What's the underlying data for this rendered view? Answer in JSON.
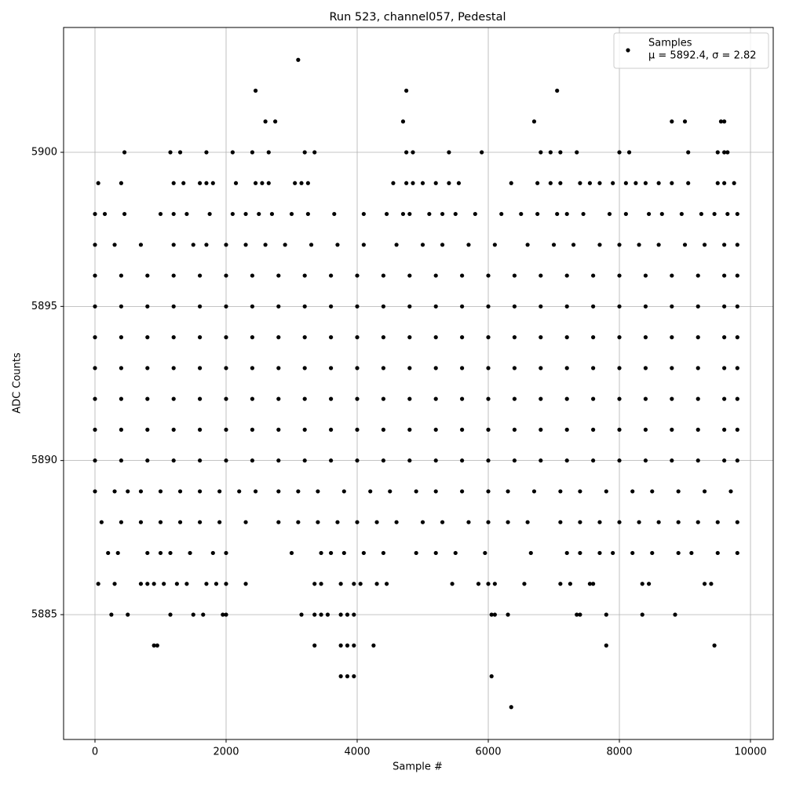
{
  "chart_data": {
    "type": "scatter",
    "title": "Run 523, channel057, Pedestal",
    "x_label": "Sample #",
    "y_label": "ADC Counts",
    "xlim": [
      -479,
      10347
    ],
    "ylim": [
      5880.95,
      5904.05
    ],
    "xticks": [
      0,
      2000,
      4000,
      6000,
      8000,
      10000
    ],
    "yticks": [
      5885,
      5890,
      5895,
      5900
    ],
    "grid": true,
    "legend": "upper right",
    "stats_label": "μ = 5892.4, σ = 2.82",
    "series": [
      {
        "name": "Samples",
        "color": "#000000",
        "x": [
          3100,
          2450,
          4750,
          7050,
          2600,
          2750,
          4700,
          6700,
          8800,
          9000,
          9550,
          9600,
          6350,
          6050,
          3750,
          3850,
          3950,
          900,
          950,
          3350,
          3750,
          3850,
          3950,
          4250,
          7800,
          9450,
          450,
          1150,
          1300,
          1700,
          2100,
          2400,
          2650,
          3200,
          3350,
          4750,
          4850,
          5400,
          5900,
          6800,
          6950,
          7100,
          7350,
          8000,
          8150,
          9050,
          9500,
          9600,
          9650,
          250,
          500,
          1150,
          1500,
          1650,
          1950,
          2000,
          3150,
          3350,
          3450,
          3550,
          3750,
          3850,
          3950,
          6050,
          6100,
          6300,
          7350,
          7400,
          7800,
          8350,
          8850,
          50,
          400,
          1200,
          1350,
          1600,
          1700,
          1800,
          2150,
          2450,
          2550,
          2650,
          3050,
          3150,
          3250,
          4550,
          4750,
          4850,
          5000,
          5200,
          5400,
          5550,
          6350,
          6750,
          6950,
          7100,
          7400,
          7550,
          7700,
          7900,
          8100,
          8250,
          8400,
          8600,
          8800,
          9050,
          9500,
          9600,
          9750,
          50,
          300,
          700,
          800,
          900,
          1050,
          1250,
          1400,
          1700,
          1850,
          2000,
          2300,
          3350,
          3450,
          3750,
          3950,
          4050,
          4300,
          4450,
          5450,
          5850,
          6000,
          6100,
          6550,
          7100,
          7250,
          7550,
          7600,
          8350,
          8450,
          9300,
          9400,
          0,
          400,
          800,
          1200,
          1600,
          2000,
          2400,
          2800,
          3200,
          3600,
          4000,
          4400,
          4800,
          5200,
          5600,
          6000,
          6400,
          6800,
          7200,
          7600,
          8000,
          8400,
          8800,
          9200,
          9600,
          9800,
          0,
          400,
          800,
          1200,
          1600,
          2000,
          2400,
          2800,
          3200,
          3600,
          4000,
          4400,
          4800,
          5200,
          5600,
          6000,
          6400,
          6800,
          7200,
          7600,
          8000,
          8400,
          8800,
          9200,
          9600,
          9800,
          0,
          400,
          800,
          1200,
          1600,
          2000,
          2400,
          2800,
          3200,
          3600,
          4000,
          4400,
          4800,
          5200,
          5600,
          6000,
          6400,
          6800,
          7200,
          7600,
          8000,
          8400,
          8800,
          9200,
          9600,
          9800,
          0,
          400,
          800,
          1200,
          1600,
          2000,
          2400,
          2800,
          3200,
          3600,
          4000,
          4400,
          4800,
          5200,
          5600,
          6000,
          6400,
          6800,
          7200,
          7600,
          8000,
          8400,
          8800,
          9200,
          9600,
          9800,
          0,
          400,
          800,
          1200,
          1600,
          2000,
          2400,
          2800,
          3200,
          3600,
          4000,
          4400,
          4800,
          5200,
          5600,
          6000,
          6400,
          6800,
          7200,
          7600,
          8000,
          8400,
          8800,
          9200,
          9600,
          9800,
          0,
          400,
          800,
          1200,
          1600,
          2000,
          2400,
          2800,
          3200,
          3600,
          4000,
          4400,
          4800,
          5200,
          5600,
          6000,
          6400,
          6800,
          7200,
          7600,
          8000,
          8400,
          8800,
          9200,
          9600,
          9800,
          0,
          400,
          800,
          1200,
          1600,
          2000,
          2400,
          2800,
          3200,
          3600,
          4000,
          4400,
          4800,
          5200,
          5600,
          6000,
          6400,
          6800,
          7200,
          7600,
          8000,
          8400,
          8800,
          9200,
          9600,
          9800,
          0,
          300,
          700,
          1200,
          1500,
          1700,
          2000,
          2300,
          2600,
          2900,
          3300,
          3700,
          4100,
          4600,
          5000,
          5300,
          5700,
          6100,
          6600,
          7000,
          7300,
          7700,
          8000,
          8300,
          8600,
          9000,
          9300,
          9600,
          9800,
          0,
          150,
          450,
          1000,
          1200,
          1400,
          1750,
          2100,
          2300,
          2500,
          2700,
          3000,
          3250,
          3650,
          4100,
          4450,
          4700,
          4800,
          5100,
          5300,
          5500,
          5800,
          6200,
          6500,
          6750,
          7050,
          7200,
          7450,
          7850,
          8100,
          8450,
          8650,
          8950,
          9250,
          9450,
          9650,
          9800,
          0,
          300,
          500,
          700,
          1000,
          1300,
          1600,
          1900,
          2200,
          2450,
          2800,
          3100,
          3400,
          3800,
          4200,
          4500,
          4900,
          5200,
          5600,
          6000,
          6300,
          6700,
          7100,
          7400,
          7800,
          8200,
          8500,
          8900,
          9300,
          9700,
          100,
          400,
          700,
          1000,
          1300,
          1600,
          1900,
          2300,
          2800,
          3100,
          3400,
          3700,
          4000,
          4300,
          4600,
          5000,
          5300,
          5700,
          6000,
          6300,
          6600,
          7100,
          7400,
          7700,
          8000,
          8300,
          8600,
          8900,
          9200,
          9500,
          9800,
          200,
          350,
          800,
          1000,
          1150,
          1450,
          1800,
          2000,
          3000,
          3450,
          3600,
          3800,
          4100,
          4400,
          4900,
          5200,
          5500,
          5950,
          6650,
          7200,
          7400,
          7700,
          7900,
          8200,
          8500,
          8900,
          9100,
          9500,
          9800
        ],
        "values": [
          5903,
          5902,
          5902,
          5902,
          5901,
          5901,
          5901,
          5901,
          5901,
          5901,
          5901,
          5901,
          5882,
          5883,
          5883,
          5883,
          5883,
          5884,
          5884,
          5884,
          5884,
          5884,
          5884,
          5884,
          5884,
          5884,
          5900,
          5900,
          5900,
          5900,
          5900,
          5900,
          5900,
          5900,
          5900,
          5900,
          5900,
          5900,
          5900,
          5900,
          5900,
          5900,
          5900,
          5900,
          5900,
          5900,
          5900,
          5900,
          5900,
          5885,
          5885,
          5885,
          5885,
          5885,
          5885,
          5885,
          5885,
          5885,
          5885,
          5885,
          5885,
          5885,
          5885,
          5885,
          5885,
          5885,
          5885,
          5885,
          5885,
          5885,
          5885,
          5899,
          5899,
          5899,
          5899,
          5899,
          5899,
          5899,
          5899,
          5899,
          5899,
          5899,
          5899,
          5899,
          5899,
          5899,
          5899,
          5899,
          5899,
          5899,
          5899,
          5899,
          5899,
          5899,
          5899,
          5899,
          5899,
          5899,
          5899,
          5899,
          5899,
          5899,
          5899,
          5899,
          5899,
          5899,
          5899,
          5899,
          5899,
          5886,
          5886,
          5886,
          5886,
          5886,
          5886,
          5886,
          5886,
          5886,
          5886,
          5886,
          5886,
          5886,
          5886,
          5886,
          5886,
          5886,
          5886,
          5886,
          5886,
          5886,
          5886,
          5886,
          5886,
          5886,
          5886,
          5886,
          5886,
          5886,
          5886,
          5886,
          5886,
          5890,
          5890,
          5890,
          5890,
          5890,
          5890,
          5890,
          5890,
          5890,
          5890,
          5890,
          5890,
          5890,
          5890,
          5890,
          5890,
          5890,
          5890,
          5890,
          5890,
          5890,
          5890,
          5890,
          5890,
          5890,
          5890,
          5891,
          5891,
          5891,
          5891,
          5891,
          5891,
          5891,
          5891,
          5891,
          5891,
          5891,
          5891,
          5891,
          5891,
          5891,
          5891,
          5891,
          5891,
          5891,
          5891,
          5891,
          5891,
          5891,
          5891,
          5891,
          5891,
          5892,
          5892,
          5892,
          5892,
          5892,
          5892,
          5892,
          5892,
          5892,
          5892,
          5892,
          5892,
          5892,
          5892,
          5892,
          5892,
          5892,
          5892,
          5892,
          5892,
          5892,
          5892,
          5892,
          5892,
          5892,
          5892,
          5893,
          5893,
          5893,
          5893,
          5893,
          5893,
          5893,
          5893,
          5893,
          5893,
          5893,
          5893,
          5893,
          5893,
          5893,
          5893,
          5893,
          5893,
          5893,
          5893,
          5893,
          5893,
          5893,
          5893,
          5893,
          5893,
          5894,
          5894,
          5894,
          5894,
          5894,
          5894,
          5894,
          5894,
          5894,
          5894,
          5894,
          5894,
          5894,
          5894,
          5894,
          5894,
          5894,
          5894,
          5894,
          5894,
          5894,
          5894,
          5894,
          5894,
          5894,
          5894,
          5895,
          5895,
          5895,
          5895,
          5895,
          5895,
          5895,
          5895,
          5895,
          5895,
          5895,
          5895,
          5895,
          5895,
          5895,
          5895,
          5895,
          5895,
          5895,
          5895,
          5895,
          5895,
          5895,
          5895,
          5895,
          5895,
          5896,
          5896,
          5896,
          5896,
          5896,
          5896,
          5896,
          5896,
          5896,
          5896,
          5896,
          5896,
          5896,
          5896,
          5896,
          5896,
          5896,
          5896,
          5896,
          5896,
          5896,
          5896,
          5896,
          5896,
          5896,
          5896,
          5897,
          5897,
          5897,
          5897,
          5897,
          5897,
          5897,
          5897,
          5897,
          5897,
          5897,
          5897,
          5897,
          5897,
          5897,
          5897,
          5897,
          5897,
          5897,
          5897,
          5897,
          5897,
          5897,
          5897,
          5897,
          5897,
          5897,
          5897,
          5897,
          5898,
          5898,
          5898,
          5898,
          5898,
          5898,
          5898,
          5898,
          5898,
          5898,
          5898,
          5898,
          5898,
          5898,
          5898,
          5898,
          5898,
          5898,
          5898,
          5898,
          5898,
          5898,
          5898,
          5898,
          5898,
          5898,
          5898,
          5898,
          5898,
          5898,
          5898,
          5898,
          5898,
          5898,
          5898,
          5898,
          5898,
          5889,
          5889,
          5889,
          5889,
          5889,
          5889,
          5889,
          5889,
          5889,
          5889,
          5889,
          5889,
          5889,
          5889,
          5889,
          5889,
          5889,
          5889,
          5889,
          5889,
          5889,
          5889,
          5889,
          5889,
          5889,
          5889,
          5889,
          5889,
          5889,
          5889,
          5888,
          5888,
          5888,
          5888,
          5888,
          5888,
          5888,
          5888,
          5888,
          5888,
          5888,
          5888,
          5888,
          5888,
          5888,
          5888,
          5888,
          5888,
          5888,
          5888,
          5888,
          5888,
          5888,
          5888,
          5888,
          5888,
          5888,
          5888,
          5888,
          5888,
          5888,
          5887,
          5887,
          5887,
          5887,
          5887,
          5887,
          5887,
          5887,
          5887,
          5887,
          5887,
          5887,
          5887,
          5887,
          5887,
          5887,
          5887,
          5887,
          5887,
          5887,
          5887,
          5887,
          5887,
          5887,
          5887,
          5887,
          5887,
          5887,
          5887
        ]
      }
    ]
  }
}
